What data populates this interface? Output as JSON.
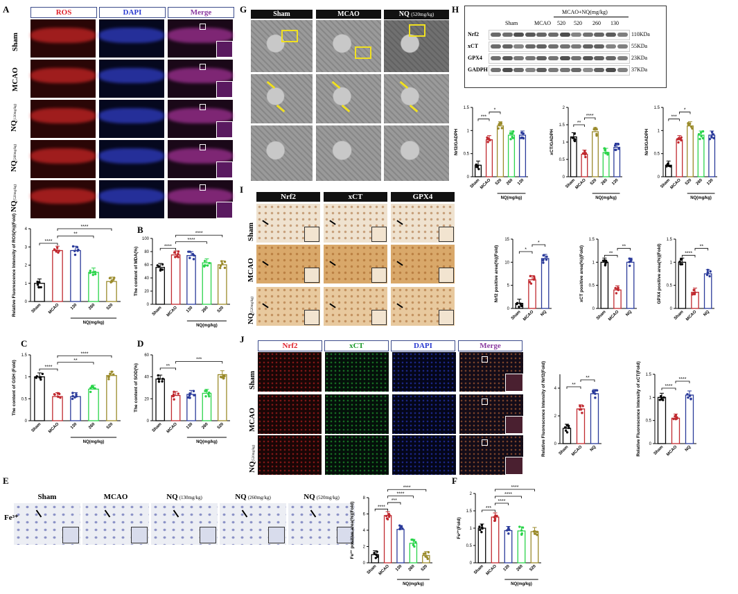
{
  "panels": {
    "A": {
      "label": "A",
      "headers": [
        "ROS",
        "DAPI",
        "Merge"
      ],
      "rows": [
        "Sham",
        "MCAO",
        "NQ",
        "NQ",
        "NQ"
      ],
      "row_sub": [
        "",
        "",
        "(130mg/kg)",
        "(260mg/kg)",
        "(520mg/kg)"
      ],
      "header_colors": [
        "#e0202a",
        "#2a3ad0",
        "#8a3aa0"
      ]
    },
    "G": {
      "label": "G",
      "headers": [
        "Sham",
        "MCAO",
        "NQ"
      ],
      "header_sub": "(520mg/kg)"
    },
    "H": {
      "label": "H",
      "title": "MCAO+NQ(mg/kg)",
      "lanes": [
        "Sham",
        "MCAO",
        "520",
        "520",
        "260",
        "130"
      ],
      "proteins": [
        "Nrf2",
        "xCT",
        "GPX4",
        "GADPH"
      ],
      "sizes": [
        "110KDa",
        "55KDa",
        "23KDa",
        "37KDa"
      ]
    },
    "I": {
      "label": "I",
      "headers": [
        "Nrf2",
        "xCT",
        "GPX4"
      ],
      "rows": [
        "Sham",
        "MCAO",
        "NQ"
      ],
      "row_sub": [
        "",
        "",
        "(520mg/kg)"
      ]
    },
    "J": {
      "label": "J",
      "headers": [
        "Nrf2",
        "xCT",
        "DAPI",
        "Merge"
      ],
      "header_colors": [
        "#e0202a",
        "#1a9a2a",
        "#2a3ad0",
        "#8a3aa0"
      ],
      "rows": [
        "Sham",
        "MCAO",
        "NQ"
      ],
      "row_sub": [
        "",
        "",
        "(520mg/kg)"
      ]
    },
    "E": {
      "label": "E",
      "headers": [
        "Sham",
        "MCAO",
        "NQ",
        "NQ",
        "NQ"
      ],
      "header_sub": [
        "",
        "",
        "(130mg/kg)",
        "(260mg/kg)",
        "(520mg/kg)"
      ],
      "row": "Fe³⁺"
    },
    "B": {
      "label": "B"
    },
    "C": {
      "label": "C"
    },
    "D": {
      "label": "D"
    },
    "F": {
      "label": "F"
    }
  },
  "chart_data": [
    {
      "id": "A",
      "type": "bar",
      "categories": [
        "Sham",
        "MCAO",
        "130",
        "260",
        "520"
      ],
      "values": [
        1.0,
        2.8,
        2.8,
        1.6,
        1.1
      ],
      "ylabel": "Relative Fluorescence Intensity of ROS(%)(Fold)",
      "ylim": [
        0,
        4
      ],
      "yticks": [
        0,
        1,
        2,
        3,
        4
      ],
      "group_label": "NQ(mg/kg)",
      "sig": [
        [
          "****",
          0,
          1
        ],
        [
          "**",
          1,
          3
        ],
        [
          "****",
          1,
          4
        ]
      ]
    },
    {
      "id": "B",
      "type": "bar",
      "categories": [
        "Sham",
        "MCAO",
        "130",
        "260",
        "520"
      ],
      "values": [
        56,
        75,
        74,
        63,
        60
      ],
      "ylabel": "The content of MDA(%)",
      "ylim": [
        0,
        100
      ],
      "yticks": [
        0,
        20,
        40,
        60,
        80,
        100
      ],
      "group_label": "NQ(mg/kg)",
      "sig": [
        [
          "****",
          0,
          1
        ],
        [
          "****",
          1,
          3
        ],
        [
          "****",
          1,
          4
        ]
      ]
    },
    {
      "id": "C",
      "type": "bar",
      "categories": [
        "Sham",
        "MCAO",
        "130",
        "260",
        "520"
      ],
      "values": [
        1.0,
        0.55,
        0.55,
        0.72,
        1.03
      ],
      "ylabel": "The content of GSH (Fold)",
      "ylim": [
        0,
        1.5
      ],
      "yticks": [
        0.0,
        0.5,
        1.0,
        1.5
      ],
      "group_label": "NQ(mg/kg)",
      "sig": [
        [
          "****",
          0,
          1
        ],
        [
          "**",
          1,
          3
        ],
        [
          "****",
          1,
          4
        ]
      ]
    },
    {
      "id": "D",
      "type": "bar",
      "categories": [
        "Sham",
        "MCAO",
        "130",
        "260",
        "520"
      ],
      "values": [
        38,
        23,
        24,
        25,
        42
      ],
      "ylabel": "The content of SOD(%)",
      "ylim": [
        0,
        60
      ],
      "yticks": [
        0,
        20,
        40,
        60
      ],
      "group_label": "NQ(mg/kg)",
      "sig": [
        [
          "**",
          0,
          1
        ],
        [
          "***",
          1,
          4
        ]
      ]
    },
    {
      "id": "E",
      "type": "bar",
      "categories": [
        "Sham",
        "MCAO",
        "130",
        "260",
        "520"
      ],
      "values": [
        1.0,
        5.8,
        4.1,
        2.4,
        0.9
      ],
      "ylabel": "Fe³⁺ positive area(%)(Fold)",
      "ylim": [
        0,
        8
      ],
      "yticks": [
        0,
        2,
        4,
        6,
        8
      ],
      "group_label": "NQ(mg/kg)",
      "sig": [
        [
          "****",
          0,
          1
        ],
        [
          "***",
          1,
          2
        ],
        [
          "****",
          1,
          3
        ],
        [
          "****",
          1,
          4
        ]
      ]
    },
    {
      "id": "F",
      "type": "bar",
      "categories": [
        "Sham",
        "MCAO",
        "130",
        "260",
        "520"
      ],
      "values": [
        1.0,
        1.32,
        0.93,
        0.92,
        0.9
      ],
      "ylabel": "Fe²⁺(Fold)",
      "ylim": [
        0,
        2.0
      ],
      "yticks": [
        0.0,
        0.5,
        1.0,
        1.5,
        2.0
      ],
      "group_label": "NQ(mg/kg)",
      "sig": [
        [
          "***",
          0,
          1
        ],
        [
          "****",
          1,
          2
        ],
        [
          "****",
          1,
          3
        ],
        [
          "****",
          1,
          4
        ]
      ]
    },
    {
      "id": "H1",
      "type": "bar",
      "categories": [
        "Sham",
        "MCAO",
        "520",
        "260",
        "130"
      ],
      "values": [
        0.25,
        0.8,
        1.1,
        0.9,
        0.9
      ],
      "ylabel": "Nrf2/GADPH",
      "ylim": [
        0,
        1.5
      ],
      "yticks": [
        0.0,
        0.5,
        1.0,
        1.5
      ],
      "group_label": "NQ(mg/kg)",
      "sig": [
        [
          "***",
          0,
          1
        ],
        [
          "*",
          1,
          2
        ]
      ]
    },
    {
      "id": "H2",
      "type": "bar",
      "categories": [
        "Sham",
        "MCAO",
        "520",
        "260",
        "130"
      ],
      "values": [
        1.15,
        0.65,
        1.3,
        0.7,
        0.85
      ],
      "ylabel": "xCT/GADPH",
      "ylim": [
        0,
        2.0
      ],
      "yticks": [
        0.0,
        0.5,
        1.0,
        1.5,
        2.0
      ],
      "group_label": "NQ(mg/kg)",
      "sig": [
        [
          "**",
          0,
          1
        ],
        [
          "****",
          1,
          2
        ]
      ]
    },
    {
      "id": "H3",
      "type": "bar",
      "categories": [
        "Sham",
        "MCAO",
        "520",
        "260",
        "130"
      ],
      "values": [
        0.25,
        0.8,
        1.1,
        0.9,
        0.9
      ],
      "ylabel": "Nrf2/GADPH",
      "ylim": [
        0,
        1.5
      ],
      "yticks": [
        0.0,
        0.5,
        1.0,
        1.5
      ],
      "group_label": "NQ(mg/kg)",
      "sig": [
        [
          "***",
          0,
          1
        ],
        [
          "*",
          1,
          2
        ]
      ]
    },
    {
      "id": "I1",
      "type": "bar",
      "categories": [
        "Sham",
        "MCAO",
        "NQ"
      ],
      "values": [
        1.1,
        6.2,
        10.8
      ],
      "ylabel": "Nrf2  positive area(%)(Fold)",
      "ylim": [
        0,
        15
      ],
      "yticks": [
        0,
        5,
        10,
        15
      ],
      "sig": [
        [
          "*",
          0,
          1
        ],
        [
          "*",
          1,
          2
        ]
      ]
    },
    {
      "id": "I2",
      "type": "bar",
      "categories": [
        "Sham",
        "MCAO",
        "NQ"
      ],
      "values": [
        1.0,
        0.4,
        1.0
      ],
      "ylabel": "xCT positive area(%)(Fold)",
      "ylim": [
        0,
        1.5
      ],
      "yticks": [
        0.0,
        0.5,
        1.0,
        1.5
      ],
      "sig": [
        [
          "**",
          0,
          1
        ],
        [
          "**",
          1,
          2
        ]
      ]
    },
    {
      "id": "I3",
      "type": "bar",
      "categories": [
        "Sham",
        "MCAO",
        "NQ"
      ],
      "values": [
        1.0,
        0.35,
        0.75
      ],
      "ylabel": "GPX4 positive area(%)(Fold)",
      "ylim": [
        0,
        1.5
      ],
      "yticks": [
        0.0,
        0.5,
        1.0,
        1.5
      ],
      "sig": [
        [
          "****",
          0,
          1
        ],
        [
          "**",
          1,
          2
        ]
      ]
    },
    {
      "id": "J1",
      "type": "bar",
      "categories": [
        "Sham",
        "MCAO",
        "NQ"
      ],
      "values": [
        1.1,
        2.5,
        3.6
      ],
      "ylabel": "Relative Fluorescence Intensity of Nrf2(Fold)",
      "ylim": [
        0,
        5
      ],
      "yticks": [
        0,
        2,
        4
      ],
      "sig": [
        [
          "**",
          0,
          1
        ],
        [
          "**",
          1,
          2
        ]
      ]
    },
    {
      "id": "J2",
      "type": "bar",
      "categories": [
        "Sham",
        "MCAO",
        "NQ"
      ],
      "values": [
        1.0,
        0.55,
        1.05
      ],
      "ylabel": "Relative Fluorescence Intensity of xCT(Fold)",
      "ylim": [
        0,
        1.5
      ],
      "yticks": [
        0.0,
        0.5,
        1.0,
        1.5
      ],
      "sig": [
        [
          "****",
          0,
          1
        ],
        [
          "****",
          1,
          2
        ]
      ]
    }
  ],
  "colors": {
    "Sham": "#000000",
    "MCAO": "#c0282e",
    "130": "#2a3a9a",
    "260": "#2ad44a",
    "520": "#9a8a2a",
    "NQ3": "#2a3a9a"
  }
}
